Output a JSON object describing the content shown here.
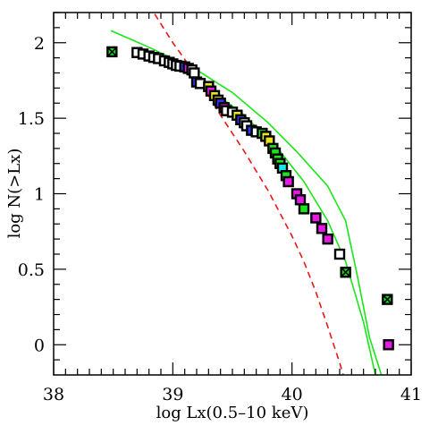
{
  "chart_data": {
    "type": "scatter",
    "xlabel": "log Lx(0.5–10 keV)",
    "ylabel": "log N(>Lx)",
    "xlim": [
      38,
      41
    ],
    "ylim": [
      -0.2,
      2.2
    ],
    "xticks": [
      38,
      39,
      40,
      41
    ],
    "yticks": [
      0,
      0.5,
      1,
      1.5,
      2
    ],
    "grid": false,
    "colors": {
      "model_band": "#19e619",
      "dashed_model": "#e61919",
      "frame": "#000000"
    },
    "curves": [
      {
        "style": "solid",
        "color": "#19e619",
        "points": [
          [
            38.48,
            2.08
          ],
          [
            38.8,
            1.97
          ],
          [
            39.2,
            1.82
          ],
          [
            39.5,
            1.67
          ],
          [
            39.8,
            1.47
          ],
          [
            40.05,
            1.27
          ],
          [
            40.3,
            1.05
          ],
          [
            40.45,
            0.82
          ],
          [
            40.55,
            0.45
          ],
          [
            40.65,
            0.05
          ],
          [
            40.75,
            -0.2
          ]
        ]
      },
      {
        "style": "solid",
        "color": "#19e619",
        "points": [
          [
            38.72,
            1.97
          ],
          [
            39.0,
            1.86
          ],
          [
            39.3,
            1.7
          ],
          [
            39.6,
            1.52
          ],
          [
            39.9,
            1.28
          ],
          [
            40.1,
            1.08
          ],
          [
            40.3,
            0.82
          ],
          [
            40.45,
            0.55
          ],
          [
            40.6,
            0.15
          ],
          [
            40.7,
            -0.2
          ]
        ]
      },
      {
        "style": "dashed",
        "color": "#e61919",
        "points": [
          [
            38.8,
            2.25
          ],
          [
            39.0,
            2.0
          ],
          [
            39.2,
            1.78
          ],
          [
            39.4,
            1.52
          ],
          [
            39.6,
            1.28
          ],
          [
            39.8,
            1.02
          ],
          [
            40.0,
            0.72
          ],
          [
            40.1,
            0.55
          ],
          [
            40.2,
            0.35
          ],
          [
            40.3,
            0.12
          ],
          [
            40.4,
            -0.12
          ],
          [
            40.43,
            -0.2
          ]
        ]
      }
    ],
    "points": [
      {
        "x": 38.49,
        "y": 1.94,
        "fill": "#19e619",
        "cross": true
      },
      {
        "x": 38.7,
        "y": 1.935,
        "fill": "#ffffff"
      },
      {
        "x": 38.75,
        "y": 1.925,
        "fill": "#ffffff"
      },
      {
        "x": 38.8,
        "y": 1.912,
        "fill": "#ffffff"
      },
      {
        "x": 38.84,
        "y": 1.903,
        "fill": "#ffffff"
      },
      {
        "x": 38.88,
        "y": 1.895,
        "fill": "#ffffff"
      },
      {
        "x": 38.93,
        "y": 1.88,
        "fill": "#ffffff"
      },
      {
        "x": 38.97,
        "y": 1.87,
        "fill": "#ffffff"
      },
      {
        "x": 39.0,
        "y": 1.86,
        "fill": "#ffffff"
      },
      {
        "x": 39.03,
        "y": 1.85,
        "fill": "#ffffff"
      },
      {
        "x": 39.06,
        "y": 1.845,
        "fill": "#ffffff"
      },
      {
        "x": 39.1,
        "y": 1.84,
        "fill": "#3333ff"
      },
      {
        "x": 39.13,
        "y": 1.83,
        "fill": "#e619e6"
      },
      {
        "x": 39.16,
        "y": 1.82,
        "fill": "#ffffff"
      },
      {
        "x": 39.18,
        "y": 1.8,
        "fill": "#ffffff"
      },
      {
        "x": 39.2,
        "y": 1.74,
        "fill": "#3333ff"
      },
      {
        "x": 39.23,
        "y": 1.73,
        "fill": "#ffffff"
      },
      {
        "x": 39.3,
        "y": 1.71,
        "fill": "#e6e619"
      },
      {
        "x": 39.32,
        "y": 1.68,
        "fill": "#e619e6"
      },
      {
        "x": 39.35,
        "y": 1.65,
        "fill": "#e6e619"
      },
      {
        "x": 39.38,
        "y": 1.62,
        "fill": "#e6e619"
      },
      {
        "x": 39.4,
        "y": 1.6,
        "fill": "#3333ff"
      },
      {
        "x": 39.43,
        "y": 1.57,
        "fill": "#e619e6"
      },
      {
        "x": 39.45,
        "y": 1.55,
        "fill": "#ffffff"
      },
      {
        "x": 39.5,
        "y": 1.54,
        "fill": "#ffffff"
      },
      {
        "x": 39.54,
        "y": 1.52,
        "fill": "#e6e619"
      },
      {
        "x": 39.57,
        "y": 1.49,
        "fill": "#3333ff"
      },
      {
        "x": 39.6,
        "y": 1.47,
        "fill": "#ffffff"
      },
      {
        "x": 39.62,
        "y": 1.45,
        "fill": "#ffffff"
      },
      {
        "x": 39.66,
        "y": 1.42,
        "fill": "#3333ff"
      },
      {
        "x": 39.7,
        "y": 1.41,
        "fill": "#ffffff"
      },
      {
        "x": 39.75,
        "y": 1.4,
        "fill": "#19e619"
      },
      {
        "x": 39.78,
        "y": 1.38,
        "fill": "#e6e619"
      },
      {
        "x": 39.81,
        "y": 1.35,
        "fill": "#e6e619"
      },
      {
        "x": 39.84,
        "y": 1.3,
        "fill": "#19e619"
      },
      {
        "x": 39.86,
        "y": 1.27,
        "fill": "#19e619"
      },
      {
        "x": 39.88,
        "y": 1.23,
        "fill": "#19e619"
      },
      {
        "x": 39.9,
        "y": 1.2,
        "fill": "#19e619"
      },
      {
        "x": 39.92,
        "y": 1.17,
        "fill": "#19e6e6"
      },
      {
        "x": 39.95,
        "y": 1.12,
        "fill": "#19e619"
      },
      {
        "x": 39.97,
        "y": 1.08,
        "fill": "#e619e6"
      },
      {
        "x": 40.04,
        "y": 1.0,
        "fill": "#e619e6"
      },
      {
        "x": 40.07,
        "y": 0.96,
        "fill": "#e619e6"
      },
      {
        "x": 40.1,
        "y": 0.9,
        "fill": "#19e619"
      },
      {
        "x": 40.2,
        "y": 0.84,
        "fill": "#e619e6"
      },
      {
        "x": 40.25,
        "y": 0.77,
        "fill": "#e619e6"
      },
      {
        "x": 40.3,
        "y": 0.7,
        "fill": "#e619e6"
      },
      {
        "x": 40.4,
        "y": 0.6,
        "fill": "#ffffff"
      },
      {
        "x": 40.45,
        "y": 0.48,
        "fill": "#19e619",
        "cross": true
      },
      {
        "x": 40.8,
        "y": 0.3,
        "fill": "#19e619",
        "cross": true
      },
      {
        "x": 40.81,
        "y": 0.0,
        "fill": "#e619e6"
      }
    ]
  }
}
